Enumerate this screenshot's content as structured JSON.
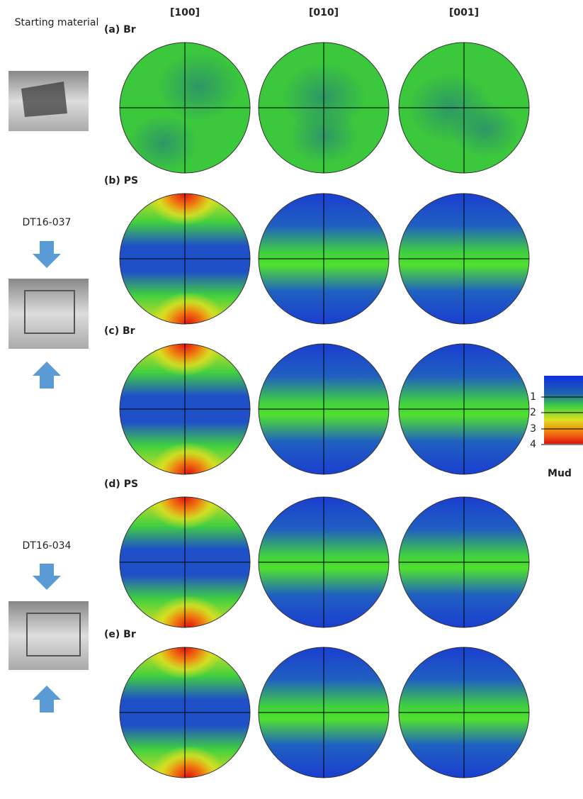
{
  "columns": [
    "[100]",
    "[010]",
    "[001]"
  ],
  "rows": [
    {
      "label": "(a) Br"
    },
    {
      "label": "(b) PS"
    },
    {
      "label": "(c) Br"
    },
    {
      "label": "(d) PS"
    },
    {
      "label": "(e) Br"
    }
  ],
  "samples": [
    {
      "label": "Starting material"
    },
    {
      "label": "DT16-037"
    },
    {
      "label": "DT16-034"
    }
  ],
  "colorbar": {
    "ticks": [
      1,
      2,
      3,
      4
    ],
    "label": "Mud"
  }
}
